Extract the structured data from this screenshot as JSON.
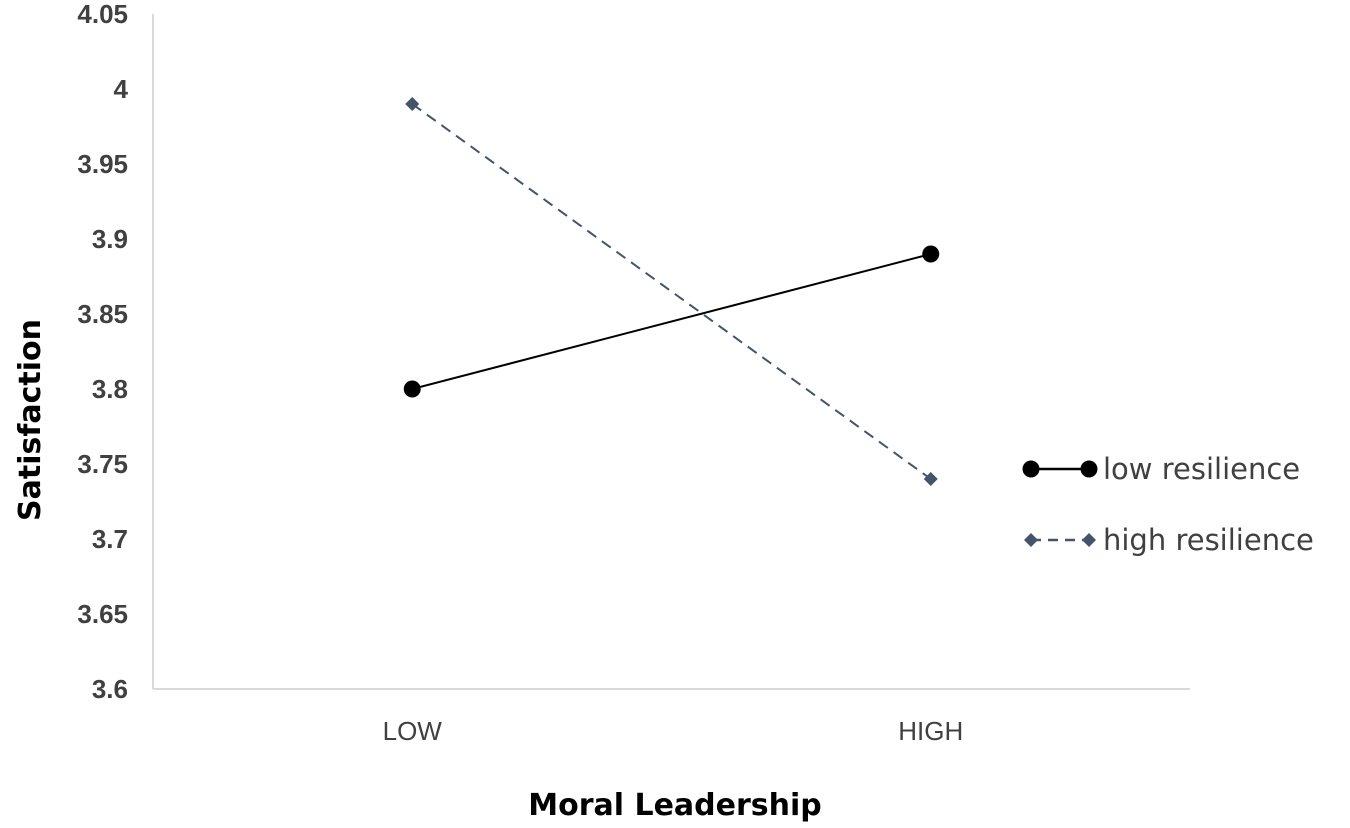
{
  "chart_data": {
    "type": "line",
    "title": "",
    "xlabel": "Moral Leadership",
    "ylabel": "Satisfaction",
    "categories": [
      "LOW",
      "HIGH"
    ],
    "ylim": [
      3.6,
      4.05
    ],
    "yticks": [
      "3.6",
      "3.65",
      "3.7",
      "3.75",
      "3.8",
      "3.85",
      "3.9",
      "3.95",
      "4",
      "4.05"
    ],
    "grid": false,
    "legend_position": "right",
    "series": [
      {
        "name": "low resilience",
        "values": [
          3.8,
          3.89
        ],
        "color": "#000000",
        "line_style": "solid",
        "marker": "circle"
      },
      {
        "name": "high resilience",
        "values": [
          3.99,
          3.74
        ],
        "color": "#44546a",
        "line_style": "dashed",
        "marker": "diamond"
      }
    ]
  }
}
